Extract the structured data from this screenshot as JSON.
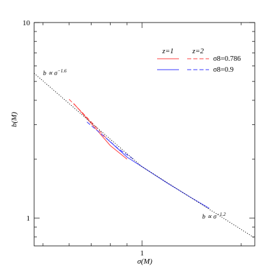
{
  "chart_data": {
    "type": "line",
    "xlabel": "σ(M)",
    "ylabel": "b(M)",
    "x_scale": "log",
    "y_scale": "log",
    "xlim": [
      0.47,
      2.2
    ],
    "ylim": [
      0.72,
      10
    ],
    "x_ticks": [
      {
        "value": 1,
        "label": "1"
      }
    ],
    "y_ticks": [
      {
        "value": 1,
        "label": "1"
      },
      {
        "value": 10,
        "label": "10"
      }
    ],
    "grid": false,
    "legend": {
      "placement": "top-right",
      "column_headers": [
        "z=1",
        "z=2"
      ],
      "row_labels": [
        "σ8=0.786",
        "σ8=0.9"
      ]
    },
    "series": [
      {
        "group": "σ8=0.786",
        "z": "z=1",
        "style": "solid",
        "color": "#ff4040",
        "x": [
          0.62,
          0.7,
          0.8,
          0.9
        ],
        "y": [
          3.85,
          3.05,
          2.35,
          2.0
        ]
      },
      {
        "group": "σ8=0.786",
        "z": "z=2",
        "style": "dashed",
        "color": "#ff4040",
        "x": [
          0.6,
          0.66,
          0.72,
          0.78
        ],
        "y": [
          4.05,
          3.45,
          2.95,
          2.55
        ]
      },
      {
        "group": "σ8=0.9",
        "z": "z=1",
        "style": "solid",
        "color": "#3a3aff",
        "x": [
          0.78,
          0.9,
          1.0,
          1.2,
          1.4,
          1.6
        ],
        "y": [
          2.55,
          2.05,
          1.83,
          1.5,
          1.28,
          1.12
        ]
      },
      {
        "group": "σ8=0.9",
        "z": "z=2",
        "style": "dashed",
        "color": "#3a3aff",
        "x": [
          0.68,
          0.75,
          0.85,
          0.95
        ],
        "y": [
          3.1,
          2.7,
          2.25,
          1.98
        ]
      },
      {
        "group": "power-law",
        "style": "dotted",
        "color": "#000000",
        "x": [
          0.47,
          1.0,
          2.2
        ],
        "y": [
          5.5,
          1.83,
          0.79
        ]
      }
    ],
    "annotations": [
      {
        "text": "b ∝ σ",
        "exponent": "−1.6",
        "near": "upper-left"
      },
      {
        "text": "b ∝ σ",
        "exponent": "−1.2",
        "near": "lower-right"
      }
    ],
    "colors": {
      "red": "#ff4040",
      "blue": "#3a3aff",
      "axis": "#000000"
    }
  }
}
